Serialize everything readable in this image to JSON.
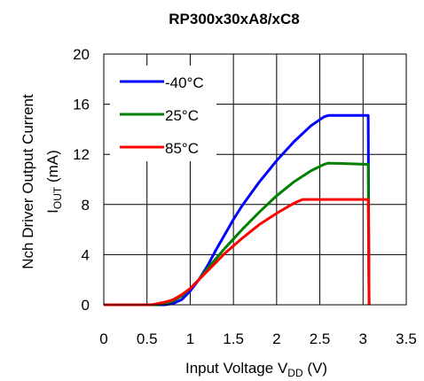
{
  "chart_data": {
    "type": "line",
    "title": "RP300x30xA8/xC8",
    "xlabel": {
      "prefix": "Input Voltage V",
      "subscript": "DD",
      "suffix": " (V)"
    },
    "ylabel": {
      "line1": "Nch Driver Output Current",
      "prefix": "I",
      "subscript": "OUT",
      "suffix": " (mA)"
    },
    "xlim": [
      0,
      3.5
    ],
    "ylim": [
      0,
      20
    ],
    "xticks": [
      "0",
      "0.5",
      "1",
      "1.5",
      "2",
      "2.5",
      "3",
      "3.5"
    ],
    "yticks": [
      "0",
      "4",
      "8",
      "12",
      "16",
      "20"
    ],
    "grid": true,
    "legend_position": "top-left",
    "series": [
      {
        "name": "-40°C",
        "color": "#0000ff",
        "points": [
          [
            0,
            0
          ],
          [
            0.7,
            0
          ],
          [
            0.8,
            0.1
          ],
          [
            0.9,
            0.4
          ],
          [
            1.0,
            1.1
          ],
          [
            1.1,
            2.0
          ],
          [
            1.2,
            3.1
          ],
          [
            1.3,
            4.4
          ],
          [
            1.4,
            5.6
          ],
          [
            1.5,
            6.8
          ],
          [
            1.6,
            7.9
          ],
          [
            1.8,
            9.8
          ],
          [
            2.0,
            11.5
          ],
          [
            2.2,
            13.0
          ],
          [
            2.4,
            14.3
          ],
          [
            2.55,
            15.0
          ],
          [
            2.6,
            15.1
          ],
          [
            3.06,
            15.1
          ],
          [
            3.07,
            0
          ]
        ]
      },
      {
        "name": "25°C",
        "color": "#008000",
        "points": [
          [
            0,
            0
          ],
          [
            0.6,
            0
          ],
          [
            0.7,
            0.1
          ],
          [
            0.8,
            0.3
          ],
          [
            0.9,
            0.7
          ],
          [
            1.0,
            1.3
          ],
          [
            1.1,
            2.0
          ],
          [
            1.2,
            2.9
          ],
          [
            1.3,
            3.7
          ],
          [
            1.4,
            4.5
          ],
          [
            1.6,
            6.0
          ],
          [
            1.8,
            7.4
          ],
          [
            2.0,
            8.7
          ],
          [
            2.2,
            9.8
          ],
          [
            2.4,
            10.7
          ],
          [
            2.55,
            11.2
          ],
          [
            2.6,
            11.3
          ],
          [
            3.06,
            11.2
          ],
          [
            3.07,
            0
          ]
        ]
      },
      {
        "name": "85°C",
        "color": "#ff0000",
        "points": [
          [
            0,
            0
          ],
          [
            0.55,
            0
          ],
          [
            0.7,
            0.2
          ],
          [
            0.8,
            0.4
          ],
          [
            0.9,
            0.8
          ],
          [
            1.0,
            1.3
          ],
          [
            1.1,
            2.0
          ],
          [
            1.2,
            2.7
          ],
          [
            1.3,
            3.4
          ],
          [
            1.4,
            4.1
          ],
          [
            1.6,
            5.3
          ],
          [
            1.8,
            6.4
          ],
          [
            2.0,
            7.3
          ],
          [
            2.2,
            8.1
          ],
          [
            2.3,
            8.4
          ],
          [
            3.06,
            8.4
          ],
          [
            3.07,
            0
          ]
        ]
      }
    ]
  }
}
